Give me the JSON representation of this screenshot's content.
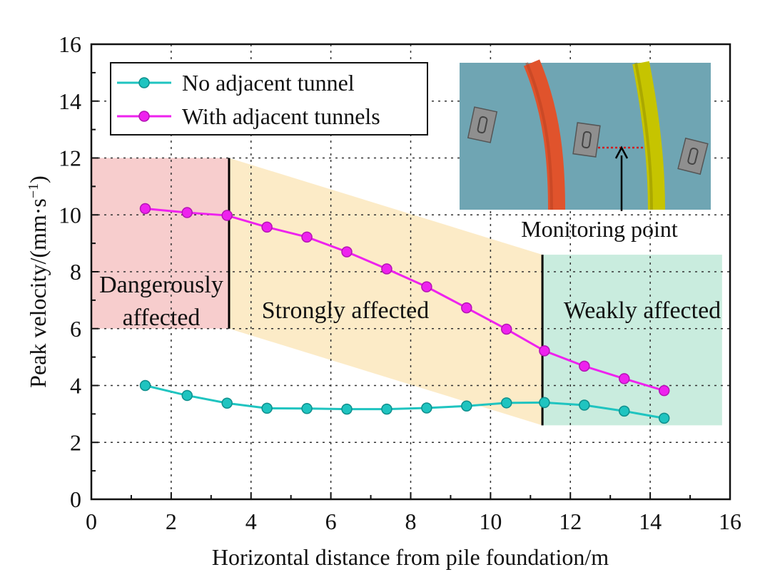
{
  "chart_data": {
    "type": "line",
    "title": "",
    "xlabel": "Horizontal distance from pile foundation/m",
    "ylabel_main": "Peak velocity/(mm·s",
    "ylabel_sup": "−1",
    "ylabel_close": ")",
    "xlim": [
      0,
      16
    ],
    "ylim": [
      0,
      16
    ],
    "x_ticks": [
      "0",
      "2",
      "4",
      "6",
      "8",
      "10",
      "12",
      "14",
      "16"
    ],
    "y_ticks": [
      "0",
      "2",
      "4",
      "6",
      "8",
      "10",
      "12",
      "14",
      "16"
    ],
    "grid": true,
    "legend_position": "top-left",
    "x": [
      1.35,
      2.4,
      3.4,
      4.4,
      5.4,
      6.4,
      7.4,
      8.4,
      9.4,
      10.4,
      11.35,
      12.35,
      13.35,
      14.35
    ],
    "series": [
      {
        "name": "No adjacent tunnel",
        "color": "#1fc4c0",
        "values": [
          4.0,
          3.65,
          3.38,
          3.2,
          3.19,
          3.17,
          3.17,
          3.21,
          3.28,
          3.39,
          3.4,
          3.31,
          3.1,
          2.85
        ]
      },
      {
        "name": "With adjacent tunnels",
        "color": "#ee22ee",
        "values": [
          10.22,
          10.08,
          9.98,
          9.57,
          9.22,
          8.7,
          8.1,
          7.47,
          6.73,
          5.98,
          5.22,
          4.68,
          4.24,
          3.82
        ]
      }
    ],
    "zones": [
      {
        "label_line1": "Dangerously",
        "label_line2": "affected",
        "x_from": 0,
        "x_to": 3.45,
        "y_from": 6,
        "y_to": 12,
        "color": "#f6c4c4"
      },
      {
        "label_line1": "Strongly affected",
        "x_from": 3.45,
        "x_to": 11.3,
        "color": "#fbe8bd"
      },
      {
        "label_line1": "Weakly affected",
        "x_from": 11.3,
        "x_to": 15.8,
        "y_from": 2.6,
        "y_to": 8.6,
        "color": "#bfe9d8"
      }
    ],
    "boundaries_x": [
      3.45,
      11.3
    ],
    "inset": {
      "annotation": "Monitoring point",
      "background_color": "#6fa5b3",
      "left_tunnel_color": "#e0532c",
      "right_tunnel_color": "#c6c400",
      "pile_color": "#8f8f8f",
      "marker_color": "#d01c1c"
    }
  }
}
